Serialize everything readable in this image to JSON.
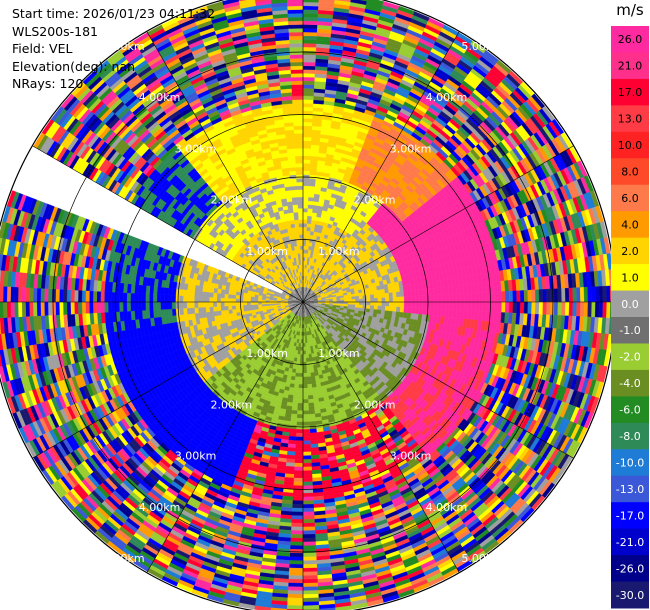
{
  "info": {
    "start_time": "Start time: 2026/01/23 04:11:32",
    "instrument": "WLS200s-181",
    "field": "Field: VEL",
    "elevation": "Elevation(deg): nan",
    "nrays": "NRays: 120"
  },
  "colorbar": {
    "unit": "m/s",
    "ticks": [
      "26.0",
      "21.0",
      "17.0",
      "13.0",
      "10.0",
      "8.0",
      "6.0",
      "4.0",
      "2.0",
      "1.0",
      "0.0",
      "-1.0",
      "-2.0",
      "-4.0",
      "-6.0",
      "-8.0",
      "-10.0",
      "-13.0",
      "-17.0",
      "-21.0",
      "-26.0",
      "-30.0"
    ],
    "colors": [
      "#ff2aa0",
      "#ff2f8c",
      "#ff0033",
      "#ff3b45",
      "#ff2222",
      "#ff4a2a",
      "#ff7a4a",
      "#ff9a00",
      "#ffd400",
      "#ffff00",
      "#a0a0a0",
      "#707070",
      "#9acd32",
      "#6b8e23",
      "#228b22",
      "#2e8b57",
      "#1e7bd6",
      "#3a58d8",
      "#0000ff",
      "#0000cd",
      "#00008b",
      "#191970"
    ]
  },
  "chart_data": {
    "type": "heatmap",
    "projection": "polar PPI",
    "field": "VEL",
    "unit": "m/s",
    "nrays": 120,
    "range_rings_km": [
      1.0,
      2.0,
      3.0,
      4.0,
      5.0
    ],
    "range_ring_labels": [
      "1.00km",
      "2.00km",
      "3.00km",
      "4.00km",
      "5.00km"
    ],
    "color_scale_min": -30.0,
    "color_scale_max": 26.0,
    "spokes_deg": [
      0,
      30,
      60,
      90,
      120,
      150,
      180,
      210,
      240,
      270,
      300,
      330
    ]
  }
}
